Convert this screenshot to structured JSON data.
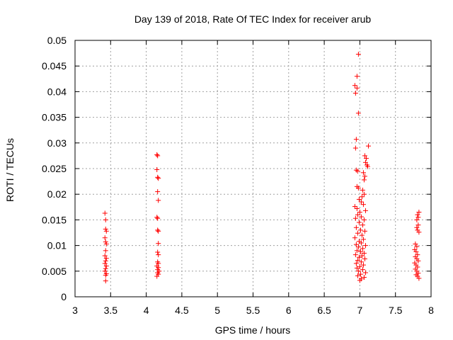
{
  "chart_data": {
    "type": "scatter",
    "title": "Day 139 of 2018, Rate Of TEC Index for receiver arub",
    "xlabel": "GPS time / hours",
    "ylabel": "ROTI / TECUs",
    "xlim": [
      3,
      8
    ],
    "ylim": [
      0,
      0.05
    ],
    "xticks": [
      3,
      3.5,
      4,
      4.5,
      5,
      5.5,
      6,
      6.5,
      7,
      7.5,
      8
    ],
    "xtick_labels": [
      "3",
      "3.5",
      "4",
      "4.5",
      "5",
      "5.5",
      "6",
      "6.5",
      "7",
      "7.5",
      "8"
    ],
    "yticks": [
      0,
      0.005,
      0.01,
      0.015,
      0.02,
      0.025,
      0.03,
      0.035,
      0.04,
      0.045,
      0.05
    ],
    "ytick_labels": [
      "0",
      "0.005",
      "0.01",
      "0.015",
      "0.02",
      "0.025",
      "0.03",
      "0.035",
      "0.04",
      "0.045",
      "0.05"
    ],
    "grid": true,
    "marker": "+",
    "color": "#ff0000",
    "series": [
      {
        "name": "ROTI",
        "points": [
          [
            3.42,
            0.0163
          ],
          [
            3.43,
            0.015
          ],
          [
            3.43,
            0.0132
          ],
          [
            3.44,
            0.0128
          ],
          [
            3.42,
            0.0115
          ],
          [
            3.43,
            0.0107
          ],
          [
            3.44,
            0.0103
          ],
          [
            3.43,
            0.009
          ],
          [
            3.42,
            0.008
          ],
          [
            3.44,
            0.0075
          ],
          [
            3.43,
            0.007
          ],
          [
            3.42,
            0.0065
          ],
          [
            3.44,
            0.006
          ],
          [
            3.43,
            0.0055
          ],
          [
            3.42,
            0.005
          ],
          [
            3.44,
            0.0045
          ],
          [
            3.43,
            0.0042
          ],
          [
            3.43,
            0.0031
          ],
          [
            4.15,
            0.0277
          ],
          [
            4.16,
            0.0275
          ],
          [
            4.15,
            0.0248
          ],
          [
            4.16,
            0.0233
          ],
          [
            4.17,
            0.0231
          ],
          [
            4.16,
            0.0205
          ],
          [
            4.17,
            0.0188
          ],
          [
            4.15,
            0.0155
          ],
          [
            4.16,
            0.0153
          ],
          [
            4.16,
            0.013
          ],
          [
            4.17,
            0.0128
          ],
          [
            4.17,
            0.0104
          ],
          [
            4.16,
            0.0087
          ],
          [
            4.17,
            0.0082
          ],
          [
            4.16,
            0.0068
          ],
          [
            4.17,
            0.0065
          ],
          [
            4.15,
            0.006
          ],
          [
            4.17,
            0.0057
          ],
          [
            4.16,
            0.0053
          ],
          [
            4.18,
            0.005
          ],
          [
            4.16,
            0.0047
          ],
          [
            4.17,
            0.0044
          ],
          [
            4.15,
            0.004
          ],
          [
            6.98,
            0.0473
          ],
          [
            6.96,
            0.043
          ],
          [
            6.93,
            0.0412
          ],
          [
            6.96,
            0.0407
          ],
          [
            6.94,
            0.0397
          ],
          [
            6.98,
            0.0358
          ],
          [
            6.95,
            0.0307
          ],
          [
            6.94,
            0.029
          ],
          [
            7.12,
            0.0294
          ],
          [
            7.07,
            0.0275
          ],
          [
            7.09,
            0.027
          ],
          [
            7.08,
            0.0262
          ],
          [
            7.1,
            0.0257
          ],
          [
            7.11,
            0.0254
          ],
          [
            6.95,
            0.0247
          ],
          [
            6.97,
            0.0245
          ],
          [
            7.05,
            0.0242
          ],
          [
            7.07,
            0.0235
          ],
          [
            7.06,
            0.0228
          ],
          [
            6.96,
            0.0215
          ],
          [
            6.98,
            0.0212
          ],
          [
            7.04,
            0.0208
          ],
          [
            7.06,
            0.02
          ],
          [
            7.03,
            0.0195
          ],
          [
            6.99,
            0.019
          ],
          [
            7.02,
            0.0185
          ],
          [
            7.05,
            0.018
          ],
          [
            6.93,
            0.0176
          ],
          [
            6.96,
            0.0172
          ],
          [
            7.08,
            0.0168
          ],
          [
            7.0,
            0.0165
          ],
          [
            6.97,
            0.016
          ],
          [
            7.02,
            0.0156
          ],
          [
            6.94,
            0.0153
          ],
          [
            7.06,
            0.015
          ],
          [
            6.99,
            0.0145
          ],
          [
            7.04,
            0.014
          ],
          [
            6.95,
            0.0135
          ],
          [
            7.01,
            0.013
          ],
          [
            7.07,
            0.0128
          ],
          [
            6.97,
            0.0124
          ],
          [
            7.03,
            0.012
          ],
          [
            6.93,
            0.0115
          ],
          [
            7.05,
            0.0112
          ],
          [
            6.99,
            0.0108
          ],
          [
            7.02,
            0.0105
          ],
          [
            6.95,
            0.0102
          ],
          [
            7.08,
            0.01
          ],
          [
            6.98,
            0.0097
          ],
          [
            7.04,
            0.0094
          ],
          [
            6.96,
            0.009
          ],
          [
            7.01,
            0.0088
          ],
          [
            7.06,
            0.0085
          ],
          [
            6.94,
            0.0082
          ],
          [
            7.03,
            0.008
          ],
          [
            6.99,
            0.0077
          ],
          [
            7.07,
            0.0074
          ],
          [
            6.97,
            0.0071
          ],
          [
            7.02,
            0.0068
          ],
          [
            6.95,
            0.0065
          ],
          [
            7.05,
            0.0062
          ],
          [
            7.0,
            0.0059
          ],
          [
            6.96,
            0.0056
          ],
          [
            7.04,
            0.0053
          ],
          [
            6.98,
            0.005
          ],
          [
            7.08,
            0.0047
          ],
          [
            7.01,
            0.0044
          ],
          [
            6.97,
            0.0041
          ],
          [
            7.06,
            0.0038
          ],
          [
            7.02,
            0.0035
          ],
          [
            7.0,
            0.0032
          ],
          [
            7.78,
            0.0103
          ],
          [
            7.8,
            0.0098
          ],
          [
            7.77,
            0.0092
          ],
          [
            7.79,
            0.0088
          ],
          [
            7.81,
            0.0082
          ],
          [
            7.78,
            0.0078
          ],
          [
            7.8,
            0.0074
          ],
          [
            7.82,
            0.007
          ],
          [
            7.77,
            0.0066
          ],
          [
            7.79,
            0.0062
          ],
          [
            7.81,
            0.0058
          ],
          [
            7.78,
            0.0054
          ],
          [
            7.8,
            0.005
          ],
          [
            7.82,
            0.0046
          ],
          [
            7.79,
            0.0043
          ],
          [
            7.81,
            0.004
          ],
          [
            7.83,
            0.0036
          ],
          [
            7.8,
            0.015
          ],
          [
            7.82,
            0.0155
          ],
          [
            7.81,
            0.016
          ],
          [
            7.83,
            0.0165
          ],
          [
            7.82,
            0.014
          ],
          [
            7.8,
            0.0135
          ],
          [
            7.81,
            0.013
          ],
          [
            7.83,
            0.0126
          ]
        ]
      }
    ]
  }
}
